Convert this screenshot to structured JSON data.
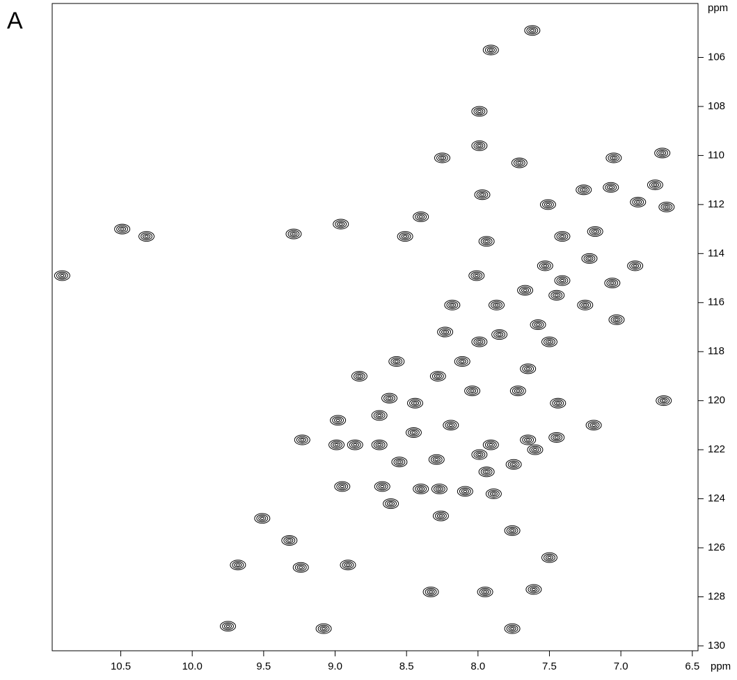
{
  "chart_data": {
    "type": "scatter",
    "panel_label": "A",
    "x_unit": "ppm",
    "y_unit": "ppm",
    "color": "#000000",
    "xlim": [
      10.98,
      6.46
    ],
    "ylim": [
      103.8,
      130.2
    ],
    "xticks": [
      10.5,
      {
        "value": 10,
        "label": "10.0"
      },
      9.5,
      {
        "value": 9,
        "label": "9.0"
      },
      8.5,
      {
        "value": 8,
        "label": "8.0"
      },
      7.5,
      {
        "value": 7,
        "label": "7.0"
      },
      6.5
    ],
    "yticks": [
      106,
      108,
      110,
      112,
      114,
      116,
      118,
      120,
      122,
      124,
      126,
      128,
      130
    ],
    "x": [
      7.62,
      7.91,
      7.99,
      7.99,
      8.25,
      7.71,
      10.49,
      10.32,
      9.29,
      8.96,
      8.51,
      8.4,
      10.91,
      7.97,
      7.94,
      8.01,
      7.05,
      6.71,
      6.76,
      7.07,
      6.68,
      6.88,
      7.26,
      7.51,
      7.41,
      7.18,
      7.22,
      7.53,
      6.9,
      7.06,
      7.41,
      7.45,
      7.25,
      7.03,
      8.18,
      7.87,
      7.67,
      7.85,
      7.99,
      8.23,
      8.11,
      7.58,
      7.5,
      8.57,
      8.83,
      8.62,
      8.44,
      8.28,
      8.04,
      7.72,
      7.65,
      7.44,
      6.7,
      7.19,
      7.45,
      7.65,
      7.6,
      7.91,
      8.19,
      8.45,
      8.69,
      8.86,
      8.98,
      8.69,
      9.23,
      8.99,
      7.99,
      7.75,
      7.94,
      8.29,
      8.55,
      8.95,
      8.67,
      8.4,
      8.27,
      8.09,
      7.89,
      8.26,
      8.61,
      9.51,
      9.32,
      7.76,
      7.5,
      9.68,
      9.24,
      8.91,
      8.33,
      7.95,
      7.61,
      9.75,
      9.08,
      7.76
    ],
    "values": [
      104.9,
      105.7,
      108.2,
      109.6,
      110.1,
      110.3,
      113.0,
      113.3,
      113.2,
      112.8,
      113.3,
      112.5,
      114.9,
      111.6,
      113.5,
      114.9,
      110.1,
      109.9,
      111.2,
      111.3,
      112.1,
      111.9,
      111.4,
      112.0,
      113.3,
      113.1,
      114.2,
      114.5,
      114.5,
      115.2,
      115.1,
      115.7,
      116.1,
      116.7,
      116.1,
      116.1,
      115.5,
      117.3,
      117.6,
      117.2,
      118.4,
      116.9,
      117.6,
      118.4,
      119.0,
      119.9,
      120.1,
      119.0,
      119.6,
      119.6,
      118.7,
      120.1,
      120.0,
      121.0,
      121.5,
      121.6,
      122.0,
      121.8,
      121.0,
      121.3,
      121.8,
      121.8,
      120.8,
      120.6,
      121.6,
      121.8,
      122.2,
      122.6,
      122.9,
      122.4,
      122.5,
      123.5,
      123.5,
      123.6,
      123.6,
      123.7,
      123.8,
      124.7,
      124.2,
      124.8,
      125.7,
      125.3,
      126.4,
      126.7,
      126.8,
      126.7,
      127.8,
      127.8,
      127.7,
      129.2,
      129.3,
      129.3
    ]
  }
}
